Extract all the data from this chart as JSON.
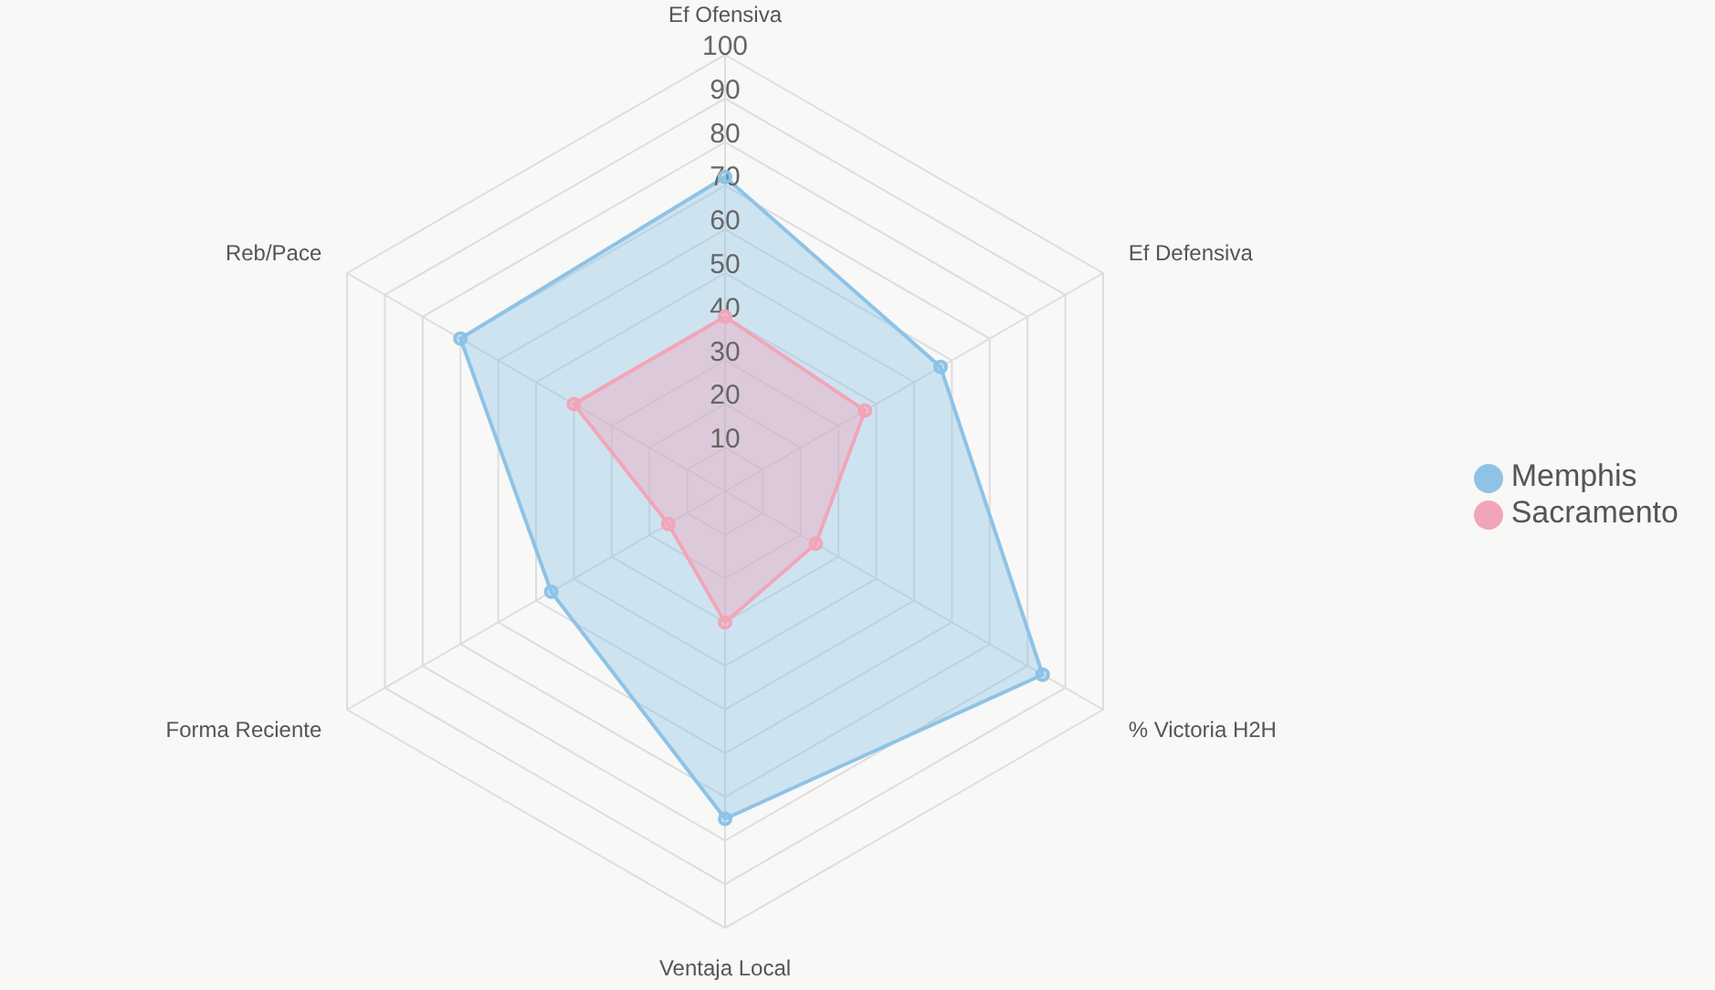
{
  "chart_data": {
    "type": "radar",
    "categories": [
      "Ef Ofensiva",
      "Ef Defensiva",
      "% Victoria H2H",
      "Ventaja Local",
      "Forma Reciente",
      "Reb/Pace"
    ],
    "series": [
      {
        "name": "Memphis",
        "color": "#8ec3e6",
        "values": [
          72,
          57,
          84,
          75,
          46,
          70
        ]
      },
      {
        "name": "Sacramento",
        "color": "#f2a5b8",
        "values": [
          40,
          37,
          24,
          30,
          15,
          40
        ]
      }
    ],
    "ylim": [
      0,
      100
    ],
    "yticks": [
      10,
      20,
      30,
      40,
      50,
      60,
      70,
      80,
      90,
      100
    ],
    "grid": true,
    "legend": "right",
    "marker": "circle"
  }
}
